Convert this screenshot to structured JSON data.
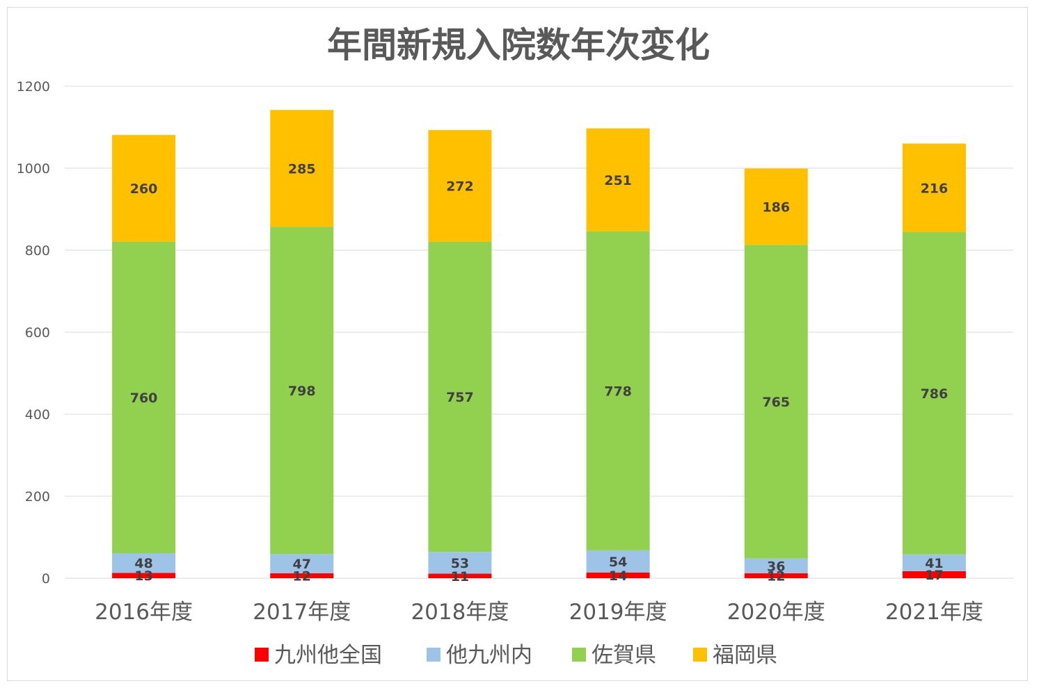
{
  "chart_data": {
    "type": "bar",
    "stacked": true,
    "title": "年間新規入院数年次変化",
    "categories": [
      "2016年度",
      "2017年度",
      "2018年度",
      "2019年度",
      "2020年度",
      "2021年度"
    ],
    "series": [
      {
        "name": "九州他全国",
        "color": "#ff0000",
        "values": [
          13,
          12,
          11,
          14,
          12,
          17
        ]
      },
      {
        "name": "他九州内",
        "color": "#9dc3e6",
        "values": [
          48,
          47,
          53,
          54,
          36,
          41
        ]
      },
      {
        "name": "佐賀県",
        "color": "#92d050",
        "values": [
          760,
          798,
          757,
          778,
          765,
          786
        ]
      },
      {
        "name": "福岡県",
        "color": "#ffc000",
        "values": [
          260,
          285,
          272,
          251,
          186,
          216
        ]
      }
    ],
    "ylim": [
      0,
      1200
    ],
    "yticks": [
      0,
      200,
      400,
      600,
      800,
      1000,
      1200
    ],
    "grid": true,
    "legend": "bottom"
  }
}
